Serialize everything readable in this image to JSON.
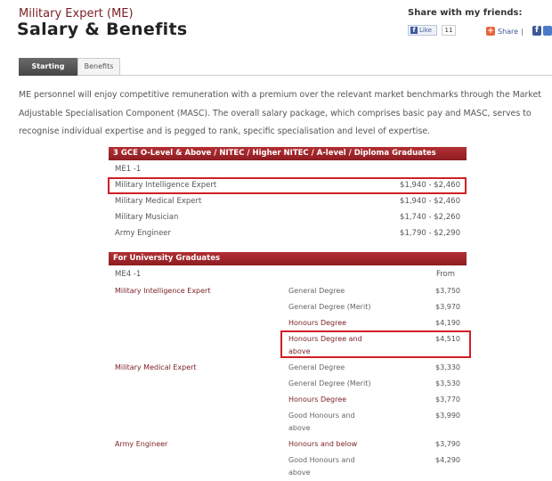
{
  "header": {
    "subtitle": "Military Expert (ME)",
    "title": "Salary & Benefits"
  },
  "share": {
    "heading": "Share with my friends:",
    "like_label": "Like",
    "like_count": "11",
    "share_label": "Share",
    "separator": "|"
  },
  "tabs": [
    {
      "label": "Starting Salary",
      "active": true
    },
    {
      "label": "Benefits",
      "active": false
    }
  ],
  "intro": "ME personnel will enjoy competitive remuneration with a premium over the relevant market benchmarks through the Market Adjustable Specialisation Component (MASC). The overall salary package, which comprises basic pay and MASC, serves to recognise individual expertise and is pegged to rank, specific specialisation and level of expertise.",
  "table1": {
    "heading": "3 GCE O-Level & Above / NITEC / Higher NITEC / A-level / Diploma Graduates",
    "rank": "ME1 -1",
    "rows": [
      {
        "role": "Military Intelligence Expert",
        "salary": "$1,940 - $2,460",
        "highlighted": true
      },
      {
        "role": "Military Medical Expert",
        "salary": "$1,940 - $2,460"
      },
      {
        "role": "Military Musician",
        "salary": "$1,740 - $2,260"
      },
      {
        "role": "Army Engineer",
        "salary": "$1,790 - $2,290"
      }
    ]
  },
  "table2": {
    "heading": "For University Graduates",
    "rank": "ME4 -1",
    "col_from": "From",
    "rows": [
      {
        "role": "Military Intelligence Expert",
        "degree": "General Degree",
        "salary": "$3,750"
      },
      {
        "role": "",
        "degree": "General Degree (Merit)",
        "salary": "$3,970"
      },
      {
        "role": "",
        "degree": "Honours Degree",
        "salary": "$4,190"
      },
      {
        "role": "",
        "degree": "Honours Degree and above",
        "salary": "$4,510",
        "highlighted": true
      },
      {
        "role": "Military Medical Expert",
        "degree": "General Degree",
        "salary": "$3,330"
      },
      {
        "role": "",
        "degree": "General Degree (Merit)",
        "salary": "$3,530"
      },
      {
        "role": "",
        "degree": "Honours Degree",
        "salary": "$3,770"
      },
      {
        "role": "",
        "degree": "Good Honours and above",
        "salary": "$3,990"
      },
      {
        "role": "Army Engineer",
        "degree": "Honours and below",
        "salary": "$3,790"
      },
      {
        "role": "",
        "degree": "Good Honours and above",
        "salary": "$4,290"
      }
    ]
  },
  "colors": {
    "brand": "#7a1f24",
    "header_bar": "#a3282d",
    "highlight": "#d01f26"
  }
}
